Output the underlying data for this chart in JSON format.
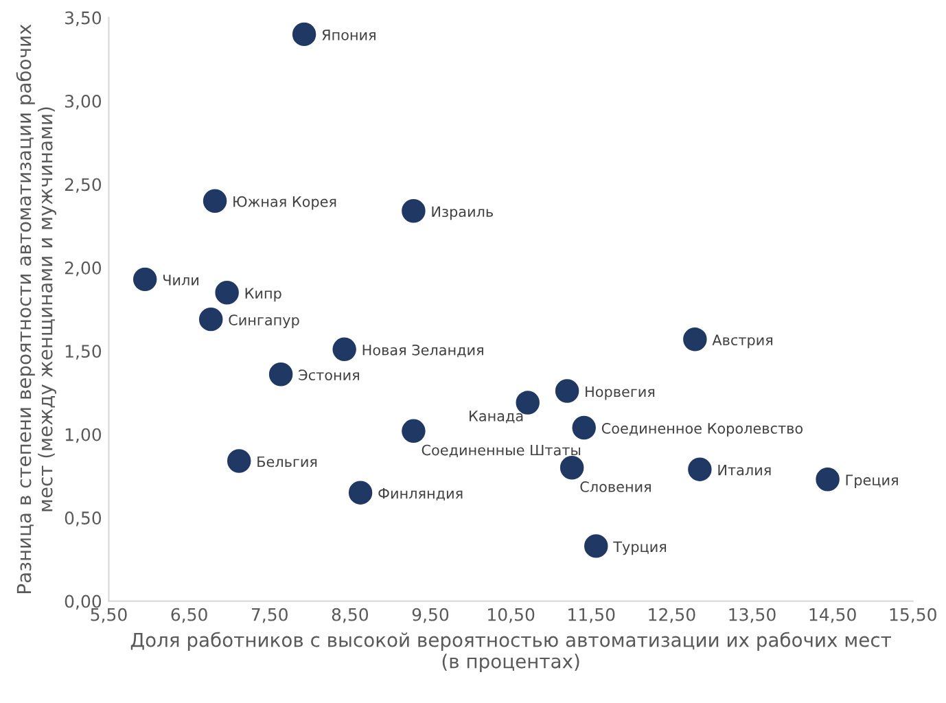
{
  "chart_data": {
    "type": "scatter",
    "xlabel": "Доля работников с высокой вероятностью автоматизации их рабочих мест\n(в процентах)",
    "ylabel": "Разница в степени вероятности автоматизации рабочих\nмест (между женщинами и мужчинами)",
    "x": [
      7.93,
      6.82,
      9.29,
      5.95,
      6.97,
      6.77,
      8.43,
      7.64,
      12.79,
      11.2,
      10.71,
      11.41,
      9.29,
      7.12,
      11.26,
      12.85,
      14.44,
      8.63,
      11.56
    ],
    "series": [
      {
        "color": "#1f3864",
        "values": [
          3.4,
          2.4,
          2.34,
          1.93,
          1.85,
          1.69,
          1.51,
          1.36,
          1.57,
          1.26,
          1.19,
          1.04,
          1.02,
          0.84,
          0.8,
          0.79,
          0.73,
          0.65,
          0.33
        ]
      }
    ],
    "annotations": [
      {
        "text": "Япония",
        "x": 7.93,
        "y": 3.4
      },
      {
        "text": "Южная Корея",
        "x": 6.82,
        "y": 2.4
      },
      {
        "text": "Израиль",
        "x": 9.29,
        "y": 2.34
      },
      {
        "text": "Чили",
        "x": 5.95,
        "y": 1.93
      },
      {
        "text": "Кипр",
        "x": 6.97,
        "y": 1.85
      },
      {
        "text": "Сингапур",
        "x": 6.77,
        "y": 1.69
      },
      {
        "text": "Новая Зеландия",
        "x": 8.43,
        "y": 1.51
      },
      {
        "text": "Эстония",
        "x": 7.64,
        "y": 1.36
      },
      {
        "text": "Австрия",
        "x": 12.79,
        "y": 1.57
      },
      {
        "text": "Норвегия",
        "x": 11.2,
        "y": 1.26
      },
      {
        "text": "Канада",
        "x": 10.71,
        "y": 1.19
      },
      {
        "text": "Соединенное Королевство",
        "x": 11.41,
        "y": 1.04
      },
      {
        "text": "Соединенные Штаты",
        "x": 9.29,
        "y": 1.02
      },
      {
        "text": "Бельгия",
        "x": 7.12,
        "y": 0.84
      },
      {
        "text": "Словения",
        "x": 11.26,
        "y": 0.8
      },
      {
        "text": "Италия",
        "x": 12.85,
        "y": 0.79
      },
      {
        "text": "Греция",
        "x": 14.44,
        "y": 0.73
      },
      {
        "text": "Финляндия",
        "x": 8.63,
        "y": 0.65
      },
      {
        "text": "Турция",
        "x": 11.56,
        "y": 0.33
      }
    ],
    "marker": "circle",
    "xlim": [
      5.5,
      15.5
    ],
    "xticks": [
      {
        "value": 5.5,
        "label": "5,50"
      },
      {
        "value": 6.5,
        "label": "6,50"
      },
      {
        "value": 7.5,
        "label": "7,50"
      },
      {
        "value": 8.5,
        "label": "8,50"
      },
      {
        "value": 9.5,
        "label": "9,50"
      },
      {
        "value": 10.5,
        "label": "10,50"
      },
      {
        "value": 11.5,
        "label": "11,50"
      },
      {
        "value": 12.5,
        "label": "12,50"
      },
      {
        "value": 13.5,
        "label": "13,50"
      },
      {
        "value": 14.5,
        "label": "14,50"
      },
      {
        "value": 15.5,
        "label": "15,50"
      }
    ],
    "ylim": [
      0,
      3.5
    ],
    "yticks": [
      {
        "value": 0,
        "label": "0,00"
      },
      {
        "value": 0.5,
        "label": "0,50"
      },
      {
        "value": 1,
        "label": "1,00"
      },
      {
        "value": 1.5,
        "label": "1,50"
      },
      {
        "value": 2,
        "label": "2,00"
      },
      {
        "value": 2.5,
        "label": "2,50"
      },
      {
        "value": 3,
        "label": "3,00"
      },
      {
        "value": 3.5,
        "label": "3,50"
      }
    ]
  }
}
